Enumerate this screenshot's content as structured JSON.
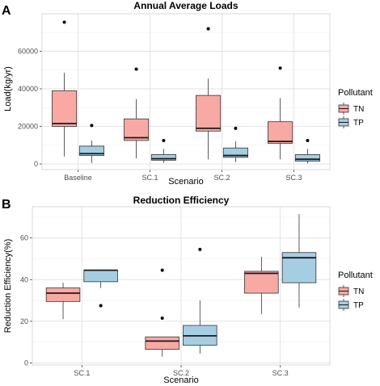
{
  "chart_data": [
    {
      "type": "box",
      "panel_label": "A",
      "title": "Annual Average Loads",
      "xlabel": "Scenario",
      "ylabel": "Load(kg/yr)",
      "ylim": [
        -3000,
        80000
      ],
      "yticks": [
        0,
        20000,
        40000,
        60000
      ],
      "ytick_labels": [
        "0",
        "20000",
        "40000",
        "60000"
      ],
      "categories": [
        "Baseline",
        "SC.1",
        "SC.2",
        "SC.3"
      ],
      "legend_title": "Pollutant",
      "legend_position": "right",
      "series": [
        {
          "name": "TN",
          "color": "#F8A9A4",
          "boxes": [
            {
              "min": 4000,
              "q1": 20000,
              "median": 21500,
              "q3": 39000,
              "max": 48500,
              "outliers": [
                75500
              ]
            },
            {
              "min": 3000,
              "q1": 12500,
              "median": 14000,
              "q3": 24000,
              "max": 34500,
              "outliers": [
                50500
              ]
            },
            {
              "min": 2500,
              "q1": 17500,
              "median": 19000,
              "q3": 36500,
              "max": 45500,
              "outliers": [
                72000
              ]
            },
            {
              "min": 2500,
              "q1": 11000,
              "median": 12000,
              "q3": 22500,
              "max": 35000,
              "outliers": [
                51000
              ]
            }
          ]
        },
        {
          "name": "TP",
          "color": "#A6CEE3",
          "boxes": [
            {
              "min": 500,
              "q1": 4500,
              "median": 5500,
              "q3": 9500,
              "max": 12500,
              "outliers": [
                20500
              ]
            },
            {
              "min": 500,
              "q1": 2000,
              "median": 2800,
              "q3": 5000,
              "max": 8000,
              "outliers": [
                12500
              ]
            },
            {
              "min": 1000,
              "q1": 3500,
              "median": 4500,
              "q3": 8500,
              "max": 12000,
              "outliers": [
                19000
              ]
            },
            {
              "min": 300,
              "q1": 1500,
              "median": 2500,
              "q3": 5000,
              "max": 8000,
              "outliers": [
                12500
              ]
            }
          ]
        }
      ]
    },
    {
      "type": "box",
      "panel_label": "B",
      "title": "Reduction Efficiency",
      "xlabel": "Scenario",
      "ylabel": "Reduction Efficiency(%)",
      "ylim": [
        -1,
        75
      ],
      "yticks": [
        0,
        20,
        40,
        60
      ],
      "ytick_labels": [
        "0",
        "20",
        "40",
        "60"
      ],
      "categories": [
        "SC.1",
        "SC.2",
        "SC.3"
      ],
      "legend_title": "Pollutant",
      "legend_position": "right",
      "series": [
        {
          "name": "TN",
          "color": "#F8A9A4",
          "boxes": [
            {
              "min": 21,
              "q1": 29.5,
              "median": 33.5,
              "q3": 36,
              "max": 38.5,
              "outliers": []
            },
            {
              "min": 3,
              "q1": 6.5,
              "median": 10.5,
              "q3": 12.5,
              "max": 12.5,
              "outliers": [
                21.5,
                44.5
              ]
            },
            {
              "min": 23.5,
              "q1": 33.5,
              "median": 43,
              "q3": 44,
              "max": 51,
              "outliers": []
            }
          ]
        },
        {
          "name": "TP",
          "color": "#A6CEE3",
          "boxes": [
            {
              "min": 36,
              "q1": 39,
              "median": 44.5,
              "q3": 44.5,
              "max": 44.5,
              "outliers": [
                27.5
              ]
            },
            {
              "min": 4.5,
              "q1": 8.5,
              "median": 13,
              "q3": 18,
              "max": 30,
              "outliers": [
                54.5
              ]
            },
            {
              "min": 26.5,
              "q1": 38.5,
              "median": 50.5,
              "q3": 53,
              "max": 71.5,
              "outliers": []
            }
          ]
        }
      ]
    }
  ]
}
